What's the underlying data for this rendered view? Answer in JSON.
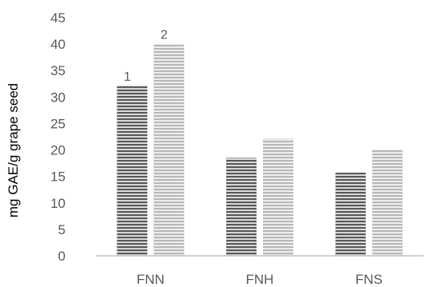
{
  "chart_data": {
    "type": "bar",
    "ylabel": "mg GAE/g grape seed",
    "xlabel": "",
    "ylim": [
      0,
      45
    ],
    "ytick_step": 5,
    "y_ticks": [
      "0",
      "5",
      "10",
      "15",
      "20",
      "25",
      "30",
      "35",
      "40",
      "45"
    ],
    "grid": false,
    "categories": [
      "FNN",
      "FNH",
      "FNS"
    ],
    "series": [
      {
        "color": "#595959",
        "values": [
          32.2,
          18.5,
          15.7
        ],
        "marker_label": "1"
      },
      {
        "color": "#b8b8b8",
        "values": [
          40.1,
          22.1,
          20.1
        ],
        "marker_label": "2"
      }
    ]
  }
}
